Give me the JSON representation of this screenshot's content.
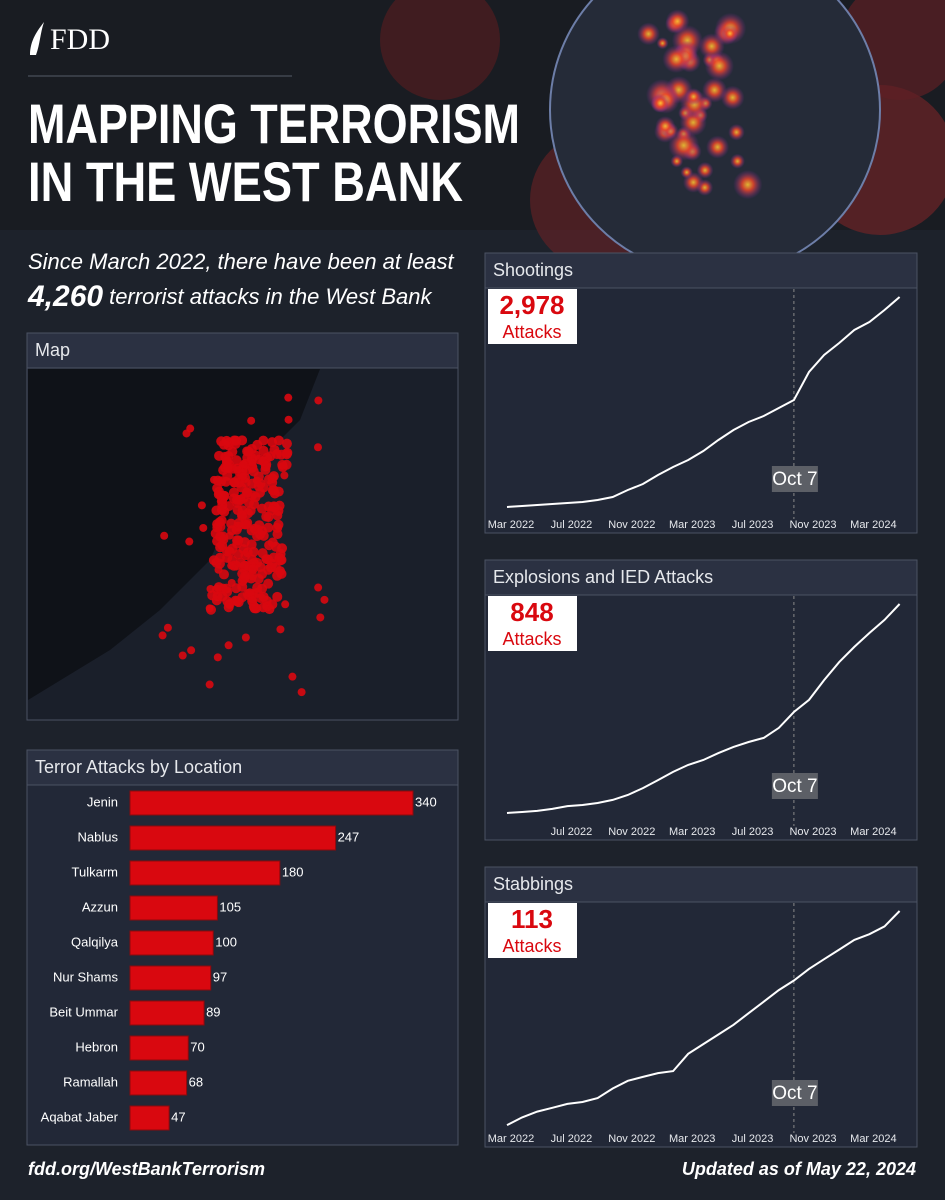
{
  "header": {
    "logo": "FDD",
    "title_lines": [
      "MAPPING TERRORISM",
      "IN THE WEST BANK"
    ]
  },
  "summary": {
    "line1": "Since March 2022, there have been at least",
    "count": "4,260",
    "line2": "terrorist attacks in the West Bank"
  },
  "map": {
    "title": "Map"
  },
  "footer": {
    "url": "fdd.org/WestBankTerrorism",
    "updated": "Updated as of May 22, 2024"
  },
  "chart_data": [
    {
      "type": "bar",
      "orientation": "horizontal",
      "title": "Terror Attacks by Location",
      "color": "#d9080f",
      "categories": [
        "Jenin",
        "Nablus",
        "Tulkarm",
        "Azzun",
        "Qalqilya",
        "Nur Shams",
        "Beit Ummar",
        "Hebron",
        "Ramallah",
        "Aqabat Jaber"
      ],
      "values": [
        340,
        247,
        180,
        105,
        100,
        97,
        89,
        70,
        68,
        47
      ]
    },
    {
      "type": "line",
      "title": "Shootings",
      "total": "2,978",
      "total_unit": "Attacks",
      "color": "#ffffff",
      "x": [
        "Mar 2022",
        "Apr 2022",
        "May 2022",
        "Jun 2022",
        "Jul 2022",
        "Aug 2022",
        "Sep 2022",
        "Oct 2022",
        "Nov 2022",
        "Dec 2022",
        "Jan 2023",
        "Feb 2023",
        "Mar 2023",
        "Apr 2023",
        "May 2023",
        "Jun 2023",
        "Jul 2023",
        "Aug 2023",
        "Sep 2023",
        "Oct 2023",
        "Nov 2023",
        "Dec 2023",
        "Jan 2024",
        "Feb 2024",
        "Mar 2024",
        "Apr 2024",
        "May 2024"
      ],
      "values": [
        109,
        123,
        137,
        150,
        164,
        178,
        205,
        246,
        342,
        423,
        546,
        656,
        751,
        874,
        1025,
        1161,
        1270,
        1352,
        1462,
        1571,
        1953,
        2186,
        2350,
        2527,
        2636,
        2800,
        2978
      ],
      "xticks": [
        "Mar 2022",
        "Jul 2022",
        "Nov 2022",
        "Mar 2023",
        "Jul 2023",
        "Nov 2023",
        "Mar 2024"
      ],
      "annotation": {
        "text": "Oct 7",
        "x": "Oct 2023"
      }
    },
    {
      "type": "line",
      "title": "Explosions and IED Attacks",
      "total": "848",
      "total_unit": "Attacks",
      "color": "#ffffff",
      "x": [
        "Mar 2022",
        "Apr 2022",
        "May 2022",
        "Jun 2022",
        "Jul 2022",
        "Aug 2022",
        "Sep 2022",
        "Oct 2022",
        "Nov 2022",
        "Dec 2022",
        "Jan 2023",
        "Feb 2023",
        "Mar 2023",
        "Apr 2023",
        "May 2023",
        "Jun 2023",
        "Jul 2023",
        "Aug 2023",
        "Sep 2023",
        "Oct 2023",
        "Nov 2023",
        "Dec 2023",
        "Jan 2024",
        "Feb 2024",
        "Mar 2024",
        "Apr 2024",
        "May 2024"
      ],
      "values": [
        35,
        39,
        43,
        51,
        62,
        66,
        74,
        86,
        105,
        132,
        163,
        195,
        222,
        241,
        268,
        292,
        311,
        327,
        366,
        428,
        475,
        552,
        622,
        681,
        735,
        786,
        848
      ],
      "xticks": [
        "Jul 2022",
        "Nov 2022",
        "Mar 2023",
        "Jul 2023",
        "Nov 2023",
        "Mar 2024"
      ],
      "annotation": {
        "text": "Oct 7",
        "x": "Oct 2023"
      }
    },
    {
      "type": "line",
      "title": "Stabbings",
      "total": "113",
      "total_unit": "Attacks",
      "color": "#ffffff",
      "x": [
        "Mar 2022",
        "Apr 2022",
        "May 2022",
        "Jun 2022",
        "Jul 2022",
        "Aug 2022",
        "Sep 2022",
        "Oct 2022",
        "Nov 2022",
        "Dec 2022",
        "Jan 2023",
        "Feb 2023",
        "Mar 2023",
        "Apr 2023",
        "May 2023",
        "Jun 2023",
        "Jul 2023",
        "Aug 2023",
        "Sep 2023",
        "Oct 2023",
        "Nov 2023",
        "Dec 2023",
        "Jan 2024",
        "Feb 2024",
        "Mar 2024",
        "Apr 2024",
        "May 2024"
      ],
      "values": [
        2,
        6,
        9,
        11,
        13,
        14,
        16,
        21,
        25,
        27,
        29,
        30,
        39,
        44,
        49,
        54,
        60,
        66,
        72,
        77,
        83,
        88,
        93,
        98,
        101,
        105,
        113
      ],
      "xticks": [
        "Mar 2022",
        "Jul 2022",
        "Nov 2022",
        "Mar 2023",
        "Jul 2023",
        "Nov 2023",
        "Mar 2024"
      ],
      "annotation": {
        "text": "Oct 7",
        "x": "Oct 2023"
      }
    }
  ]
}
